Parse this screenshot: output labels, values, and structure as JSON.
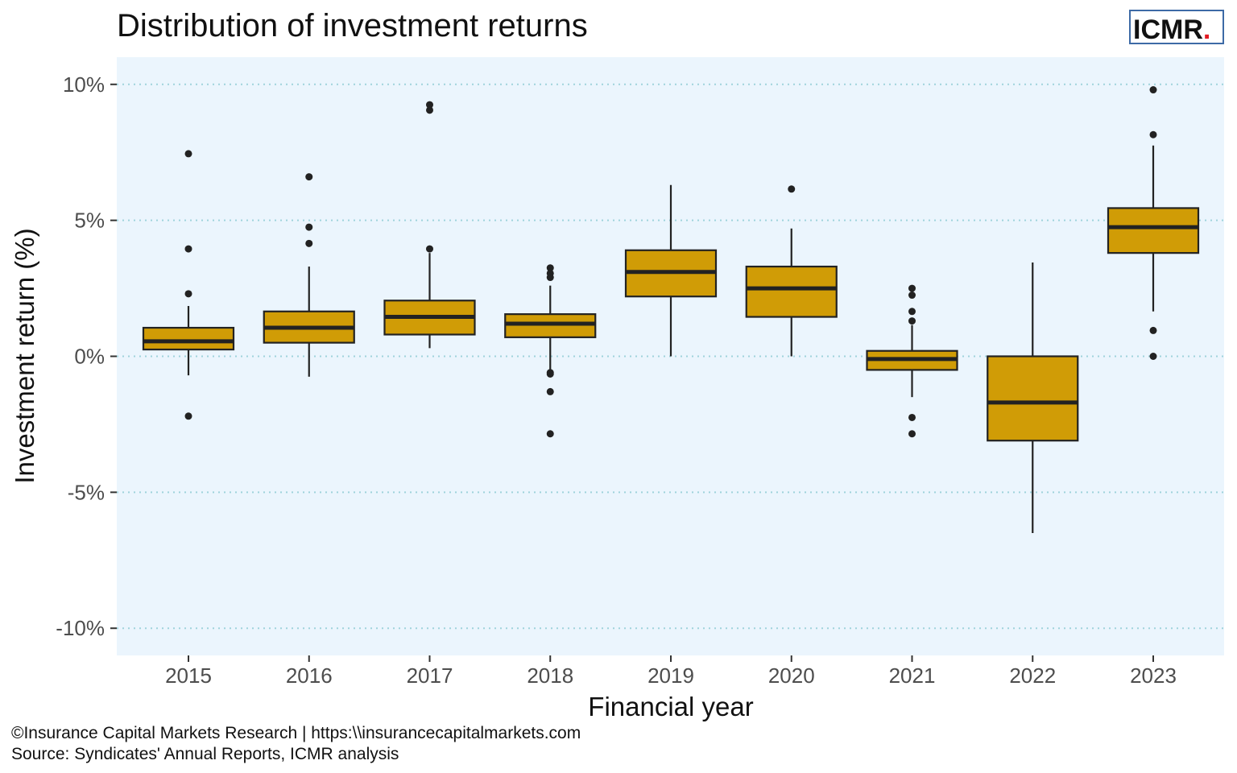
{
  "chart_data": {
    "type": "boxplot",
    "title": "Distribution of  investment returns",
    "xlabel": "Financial year",
    "ylabel": "Investment return (%)",
    "ylim": [
      -11,
      11
    ],
    "yticks": [
      -10,
      -5,
      0,
      5,
      10
    ],
    "ytick_labels": [
      "-10%",
      "-5%",
      "0%",
      "5%",
      "10%"
    ],
    "grid": "horizontal dotted",
    "categories": [
      "2015",
      "2016",
      "2017",
      "2018",
      "2019",
      "2020",
      "2021",
      "2022",
      "2023"
    ],
    "boxes": [
      {
        "year": "2015",
        "whisker_low": -0.7,
        "q1": 0.25,
        "median": 0.55,
        "q3": 1.05,
        "whisker_high": 1.85,
        "outliers": [
          7.45,
          3.95,
          2.3,
          -2.2
        ]
      },
      {
        "year": "2016",
        "whisker_low": -0.75,
        "q1": 0.5,
        "median": 1.05,
        "q3": 1.65,
        "whisker_high": 3.3,
        "outliers": [
          6.6,
          4.75,
          4.15
        ]
      },
      {
        "year": "2017",
        "whisker_low": 0.3,
        "q1": 0.8,
        "median": 1.45,
        "q3": 2.05,
        "whisker_high": 3.8,
        "outliers": [
          9.25,
          9.05,
          3.95
        ]
      },
      {
        "year": "2018",
        "whisker_low": -0.55,
        "q1": 0.7,
        "median": 1.2,
        "q3": 1.55,
        "whisker_high": 2.6,
        "outliers": [
          3.25,
          3.05,
          2.9,
          -0.6,
          -0.65,
          -1.3,
          -2.85
        ]
      },
      {
        "year": "2019",
        "whisker_low": 0.0,
        "q1": 2.2,
        "median": 3.1,
        "q3": 3.9,
        "whisker_high": 6.3,
        "outliers": []
      },
      {
        "year": "2020",
        "whisker_low": 0.0,
        "q1": 1.45,
        "median": 2.5,
        "q3": 3.3,
        "whisker_high": 4.7,
        "outliers": [
          6.15
        ]
      },
      {
        "year": "2021",
        "whisker_low": -1.5,
        "q1": -0.5,
        "median": -0.1,
        "q3": 0.2,
        "whisker_high": 1.15,
        "outliers": [
          2.5,
          2.25,
          1.65,
          1.3,
          -2.25,
          -2.85
        ]
      },
      {
        "year": "2022",
        "whisker_low": -6.5,
        "q1": -3.1,
        "median": -1.7,
        "q3": 0.0,
        "whisker_high": 3.45,
        "outliers": []
      },
      {
        "year": "2023",
        "whisker_low": 1.65,
        "q1": 3.8,
        "median": 4.75,
        "q3": 5.45,
        "whisker_high": 7.75,
        "outliers": [
          9.8,
          8.15,
          0.95,
          0.0
        ]
      }
    ]
  },
  "logo": {
    "text": "ICMR",
    "dot": ".",
    "dot_color": "#e31b23",
    "border_color": "#3d6aa6"
  },
  "caption": {
    "line1": "©Insurance Capital Markets Research | https:\\\\insurancecapitalmarkets.com",
    "line2": "Source: Syndicates' Annual Reports, ICMR analysis"
  },
  "colors": {
    "box_fill": "#d09c06",
    "box_stroke": "#222222",
    "panel_bg": "#ebf5fd",
    "grid": "#9fd3dc"
  }
}
